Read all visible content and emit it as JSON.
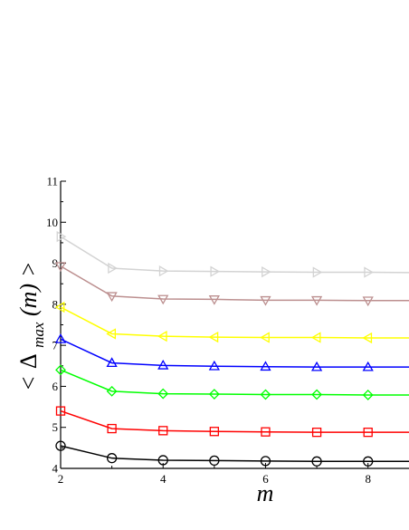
{
  "chart_data": {
    "type": "line",
    "xlabel": "m",
    "ylabel_parts": {
      "open": "<",
      "delta": "Δ",
      "sub": "max",
      "args": "(m)",
      "close": ">"
    },
    "xlim": [
      2,
      8.8
    ],
    "ylim": [
      4,
      11
    ],
    "xticks": [
      2,
      4,
      6,
      8
    ],
    "yticks": [
      4,
      5,
      6,
      7,
      8,
      9,
      10,
      11
    ],
    "x": [
      2,
      3,
      4,
      5,
      6,
      7,
      8,
      9
    ],
    "grid": false,
    "series": [
      {
        "marker": "circle",
        "color": "#000000",
        "values": [
          4.55,
          4.25,
          4.2,
          4.19,
          4.18,
          4.17,
          4.17,
          4.17
        ]
      },
      {
        "marker": "square",
        "color": "#ff0000",
        "values": [
          5.4,
          4.97,
          4.92,
          4.9,
          4.89,
          4.88,
          4.88,
          4.88
        ]
      },
      {
        "marker": "diamond",
        "color": "#00ff00",
        "values": [
          6.4,
          5.88,
          5.82,
          5.81,
          5.8,
          5.8,
          5.79,
          5.79
        ]
      },
      {
        "marker": "triangle-up",
        "color": "#0000ff",
        "values": [
          7.15,
          6.57,
          6.51,
          6.49,
          6.48,
          6.47,
          6.47,
          6.47
        ]
      },
      {
        "marker": "triangle-left",
        "color": "#ffff00",
        "values": [
          7.93,
          7.28,
          7.22,
          7.2,
          7.19,
          7.19,
          7.18,
          7.18
        ]
      },
      {
        "marker": "triangle-down",
        "color": "#bc8f8f",
        "values": [
          8.93,
          8.2,
          8.13,
          8.12,
          8.1,
          8.1,
          8.09,
          8.09
        ]
      },
      {
        "marker": "triangle-right",
        "color": "#d3d3d3",
        "values": [
          9.65,
          8.88,
          8.81,
          8.8,
          8.79,
          8.78,
          8.78,
          8.77
        ]
      }
    ]
  }
}
